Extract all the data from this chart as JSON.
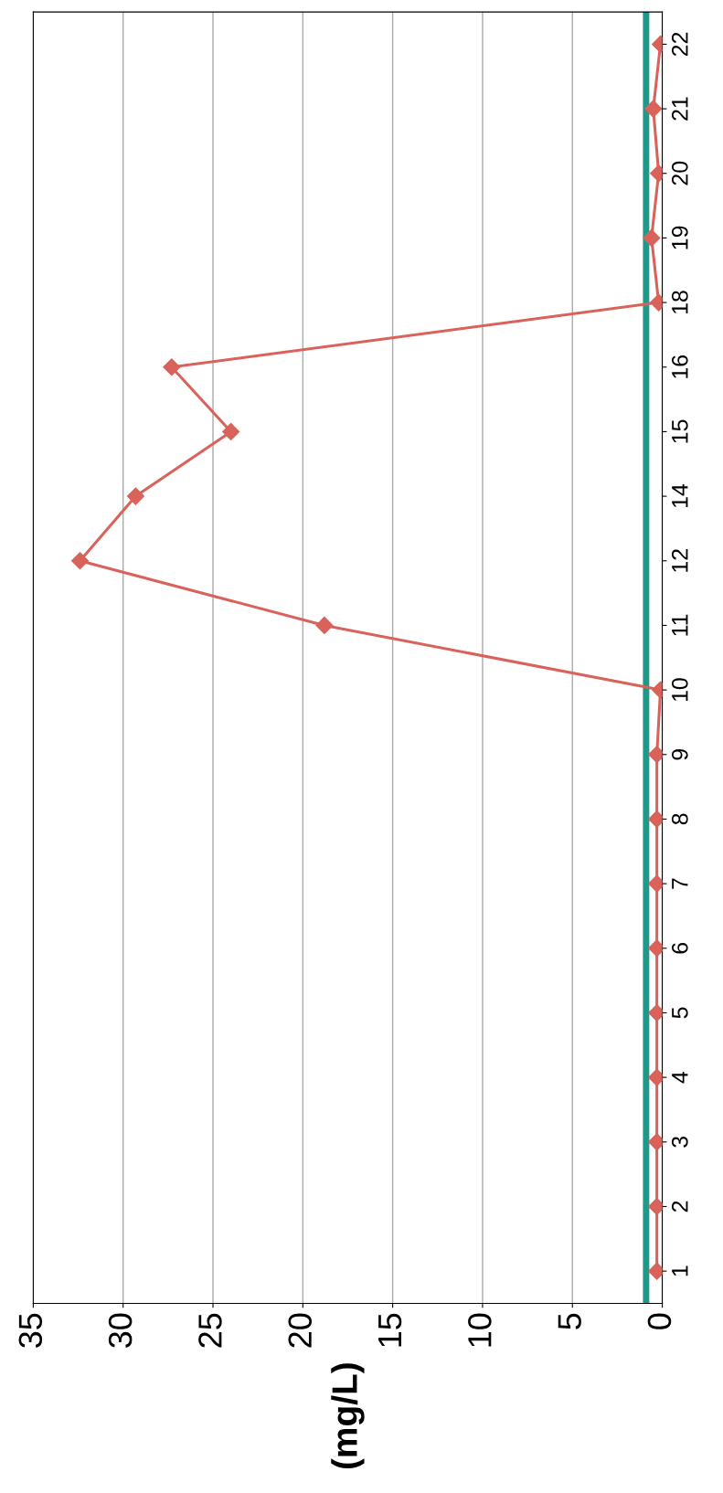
{
  "chart_data": {
    "type": "line",
    "orientation": "horizontal",
    "ylabel": "(mg/L)",
    "categories": [
      "22",
      "21",
      "20",
      "19",
      "18",
      "16",
      "15",
      "14",
      "12",
      "11",
      "10",
      "9",
      "8",
      "7",
      "6",
      "5",
      "4",
      "3",
      "2",
      "1"
    ],
    "series": [
      {
        "color": "#d9625a",
        "values": [
          0.1,
          0.5,
          0.2,
          0.6,
          0.2,
          27.3,
          24.0,
          29.3,
          32.4,
          18.8,
          0.1,
          0.3,
          0.3,
          0.3,
          0.3,
          0.3,
          0.3,
          0.3,
          0.3,
          0.3
        ]
      }
    ],
    "marker": "diamond",
    "xlim": [
      35,
      0
    ],
    "xticks": [
      35,
      30,
      25,
      20,
      15,
      10,
      5,
      0
    ],
    "grid": "x",
    "ref_lines": [
      {
        "axis": "x",
        "value": 0.9,
        "color": "#1f9a8a"
      }
    ]
  }
}
